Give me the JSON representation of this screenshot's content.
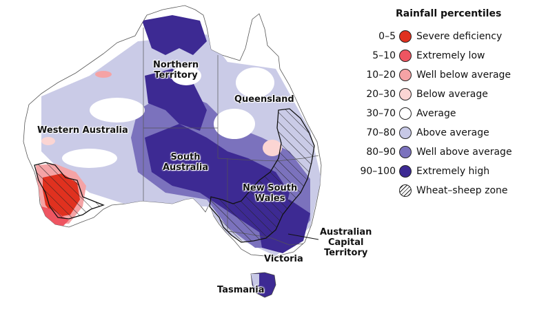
{
  "legend": {
    "title": "Rainfall percentiles",
    "items": [
      {
        "range": "0–5",
        "label": "Severe deficiency",
        "color": "#e0311f"
      },
      {
        "range": "5–10",
        "label": "Extremely low",
        "color": "#ee5561"
      },
      {
        "range": "10–20",
        "label": "Well below average",
        "color": "#f5a3a5"
      },
      {
        "range": "20–30",
        "label": "Below average",
        "color": "#fbd5d3"
      },
      {
        "range": "30–70",
        "label": "Average",
        "color": "#ffffff"
      },
      {
        "range": "70–80",
        "label": "Above average",
        "color": "#c7c8e6"
      },
      {
        "range": "80–90",
        "label": "Well above average",
        "color": "#7b72bd"
      },
      {
        "range": "90–100",
        "label": "Extremely high",
        "color": "#3d2a93"
      },
      {
        "range": "",
        "label": "Wheat–sheep zone",
        "color": "hatch"
      }
    ]
  },
  "regions": {
    "nt_line1": "Northern",
    "nt_line2": "Territory",
    "qld": "Queensland",
    "wa": "Western Australia",
    "sa_line1": "South",
    "sa_line2": "Australia",
    "nsw_line1": "New South",
    "nsw_line2": "Wales",
    "act_line1": "Australian",
    "act_line2": "Capital",
    "act_line3": "Territory",
    "vic": "Victoria",
    "tas": "Tasmania"
  },
  "colors": {
    "extremely_high": "#3d2a93",
    "well_above": "#7b72bd",
    "above": "#c7c8e6",
    "below": "#fbd5d3",
    "well_below": "#f5a3a5",
    "extremely_low": "#ee5561",
    "severe": "#e0311f"
  }
}
